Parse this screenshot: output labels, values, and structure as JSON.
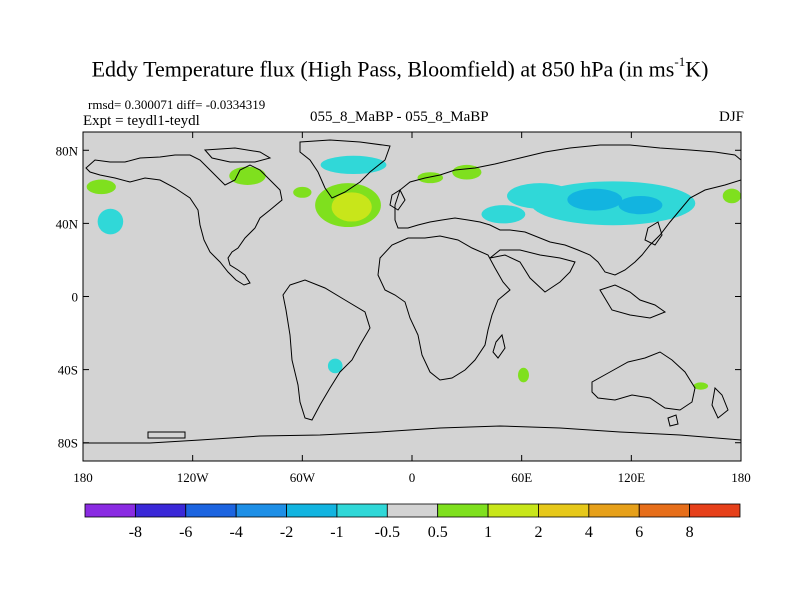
{
  "title": {
    "main": "Eddy Temperature flux (High Pass, Bloomfield) at 850 hPa (in ms",
    "sup": "-1",
    "suffix": "K)"
  },
  "stats": {
    "rmsd_label": "rmsd= 0.300071",
    "diff_label": "diff= -0.0334319"
  },
  "experiment": "Expt = teydl1-teydl",
  "center_label": "055_8_MaBP - 055_8_MaBP",
  "season": "DJF",
  "map": {
    "lon_range": [
      -180,
      180
    ],
    "lat_range": [
      -90,
      90
    ],
    "background_color": "#d3d3d3",
    "x_ticks": [
      {
        "value": -180,
        "label": "180"
      },
      {
        "value": -120,
        "label": "120W"
      },
      {
        "value": -60,
        "label": "60W"
      },
      {
        "value": 0,
        "label": "0"
      },
      {
        "value": 60,
        "label": "60E"
      },
      {
        "value": 120,
        "label": "120E"
      },
      {
        "value": 180,
        "label": "180"
      }
    ],
    "y_ticks": [
      {
        "value": 80,
        "label": "80N"
      },
      {
        "value": 40,
        "label": "40N"
      },
      {
        "value": 0,
        "label": "0"
      },
      {
        "value": -40,
        "label": "40S"
      },
      {
        "value": -80,
        "label": "80S"
      }
    ]
  },
  "colorbar": {
    "colors": [
      "#8a2be2",
      "#3a28d8",
      "#1c64e0",
      "#1e8fe6",
      "#12b4e0",
      "#30d8d8",
      "#d3d3d3",
      "#7fe01e",
      "#c8e61a",
      "#e6c81a",
      "#e6a01a",
      "#e66e1a",
      "#e6401a"
    ],
    "labels": [
      "-8",
      "-6",
      "-4",
      "-2",
      "-1",
      "-0.5",
      "0.5",
      "1",
      "2",
      "4",
      "6",
      "8"
    ]
  },
  "chart_data": {
    "type": "heatmap",
    "field": "eddy temperature flux at 850 hPa",
    "x_range": [
      -180,
      180
    ],
    "y_range": [
      -90,
      90
    ],
    "levels": [
      -8,
      -6,
      -4,
      -2,
      -1,
      -0.5,
      0.5,
      1,
      2,
      4,
      6,
      8
    ],
    "regions": [
      {
        "lon": -170,
        "lat": 60,
        "rx": 8,
        "ry": 4,
        "value": 0.7
      },
      {
        "lon": -165,
        "lat": 41,
        "rx": 7,
        "ry": 7,
        "value": -0.7
      },
      {
        "lon": -90,
        "lat": 66,
        "rx": 10,
        "ry": 5,
        "value": 0.7
      },
      {
        "lon": -60,
        "lat": 57,
        "rx": 5,
        "ry": 3,
        "value": 0.7
      },
      {
        "lon": -32,
        "lat": 72,
        "rx": 18,
        "ry": 5,
        "value": -0.7
      },
      {
        "lon": -35,
        "lat": 50,
        "rx": 18,
        "ry": 12,
        "value": 0.7
      },
      {
        "lon": -33,
        "lat": 49,
        "rx": 11,
        "ry": 8,
        "value": 1.5
      },
      {
        "lon": 10,
        "lat": 65,
        "rx": 7,
        "ry": 3,
        "value": 0.7
      },
      {
        "lon": 30,
        "lat": 68,
        "rx": 8,
        "ry": 4,
        "value": 0.7
      },
      {
        "lon": 50,
        "lat": 45,
        "rx": 12,
        "ry": 5,
        "value": -0.7
      },
      {
        "lon": 70,
        "lat": 55,
        "rx": 18,
        "ry": 7,
        "value": -0.7
      },
      {
        "lon": 110,
        "lat": 51,
        "rx": 45,
        "ry": 12,
        "value": -0.7
      },
      {
        "lon": 100,
        "lat": 53,
        "rx": 15,
        "ry": 6,
        "value": -1.5
      },
      {
        "lon": 125,
        "lat": 50,
        "rx": 12,
        "ry": 5,
        "value": -1.5
      },
      {
        "lon": 175,
        "lat": 55,
        "rx": 5,
        "ry": 4,
        "value": 0.7
      },
      {
        "lon": -42,
        "lat": -38,
        "rx": 4,
        "ry": 4,
        "value": -0.7
      },
      {
        "lon": 61,
        "lat": -43,
        "rx": 3,
        "ry": 4,
        "value": 0.7
      },
      {
        "lon": 158,
        "lat": -49,
        "rx": 4,
        "ry": 2,
        "value": 0.7
      }
    ]
  }
}
